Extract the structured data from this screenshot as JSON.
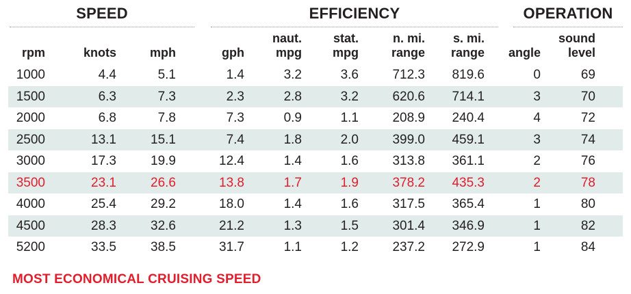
{
  "chart_data": {
    "type": "table",
    "groups": [
      "SPEED",
      "EFFICIENCY",
      "OPERATION"
    ],
    "columns": [
      "rpm",
      "knots",
      "mph",
      "gph",
      "naut.\nmpg",
      "stat.\nmpg",
      "n. mi.\nrange",
      "s. mi.\nrange",
      "angle",
      "sound\nlevel"
    ],
    "rows": [
      [
        "1000",
        "4.4",
        "5.1",
        "1.4",
        "3.2",
        "3.6",
        "712.3",
        "819.6",
        "0",
        "69"
      ],
      [
        "1500",
        "6.3",
        "7.3",
        "2.3",
        "2.8",
        "3.2",
        "620.6",
        "714.1",
        "3",
        "70"
      ],
      [
        "2000",
        "6.8",
        "7.8",
        "7.3",
        "0.9",
        "1.1",
        "208.9",
        "240.4",
        "4",
        "72"
      ],
      [
        "2500",
        "13.1",
        "15.1",
        "7.4",
        "1.8",
        "2.0",
        "399.0",
        "459.1",
        "3",
        "74"
      ],
      [
        "3000",
        "17.3",
        "19.9",
        "12.4",
        "1.4",
        "1.6",
        "313.8",
        "361.1",
        "2",
        "76"
      ],
      [
        "3500",
        "23.1",
        "26.6",
        "13.8",
        "1.7",
        "1.9",
        "378.2",
        "435.3",
        "2",
        "78"
      ],
      [
        "4000",
        "25.4",
        "29.2",
        "18.0",
        "1.4",
        "1.6",
        "317.5",
        "365.4",
        "1",
        "80"
      ],
      [
        "4500",
        "28.3",
        "32.6",
        "21.2",
        "1.3",
        "1.5",
        "301.4",
        "346.9",
        "1",
        "82"
      ],
      [
        "5200",
        "33.5",
        "38.5",
        "31.7",
        "1.1",
        "1.2",
        "237.2",
        "272.9",
        "1",
        "84"
      ]
    ],
    "highlight_row": 5,
    "shaded_rows": [
      1,
      3,
      5,
      7
    ],
    "footnote": "MOST ECONOMICAL CRUISING SPEED",
    "colors": {
      "highlight": "#e21d2c",
      "shade": "#e1ecea",
      "text": "#231f20"
    }
  }
}
